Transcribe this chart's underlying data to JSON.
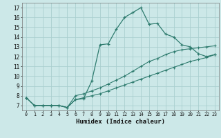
{
  "xlabel": "Humidex (Indice chaleur)",
  "background_color": "#cce8e8",
  "grid_color": "#aacfcf",
  "line_color": "#2e7b6e",
  "xlim": [
    -0.5,
    23.5
  ],
  "ylim": [
    6.5,
    17.5
  ],
  "xticks": [
    0,
    1,
    2,
    3,
    4,
    5,
    6,
    7,
    8,
    9,
    10,
    11,
    12,
    13,
    14,
    15,
    16,
    17,
    18,
    19,
    20,
    21,
    22,
    23
  ],
  "yticks": [
    7,
    8,
    9,
    10,
    11,
    12,
    13,
    14,
    15,
    16,
    17
  ],
  "line1_x": [
    0,
    1,
    2,
    3,
    4,
    5,
    6,
    7,
    8,
    9,
    10,
    11,
    12,
    13,
    14,
    15,
    16,
    17,
    18,
    19,
    20,
    21,
    22,
    23
  ],
  "line1_y": [
    7.8,
    7.0,
    7.0,
    7.0,
    7.0,
    6.8,
    7.6,
    7.7,
    9.5,
    13.2,
    13.3,
    14.8,
    16.0,
    16.5,
    17.0,
    15.3,
    15.4,
    14.3,
    14.0,
    13.2,
    13.0,
    12.3,
    12.0,
    12.2
  ],
  "line2_x": [
    0,
    1,
    2,
    3,
    4,
    5,
    6,
    7,
    8,
    9,
    10,
    11,
    12,
    13,
    14,
    15,
    16,
    17,
    18,
    19,
    20,
    21,
    22,
    23
  ],
  "line2_y": [
    7.8,
    7.0,
    7.0,
    7.0,
    7.0,
    6.8,
    8.0,
    8.2,
    8.5,
    8.8,
    9.2,
    9.6,
    10.0,
    10.5,
    11.0,
    11.5,
    11.8,
    12.2,
    12.5,
    12.7,
    12.8,
    12.9,
    13.0,
    13.1
  ],
  "line3_x": [
    0,
    1,
    2,
    3,
    4,
    5,
    6,
    7,
    8,
    9,
    10,
    11,
    12,
    13,
    14,
    15,
    16,
    17,
    18,
    19,
    20,
    21,
    22,
    23
  ],
  "line3_y": [
    7.8,
    7.0,
    7.0,
    7.0,
    7.0,
    6.8,
    7.6,
    7.8,
    8.0,
    8.2,
    8.5,
    8.8,
    9.1,
    9.4,
    9.7,
    10.0,
    10.3,
    10.6,
    10.9,
    11.2,
    11.5,
    11.7,
    11.9,
    12.2
  ]
}
